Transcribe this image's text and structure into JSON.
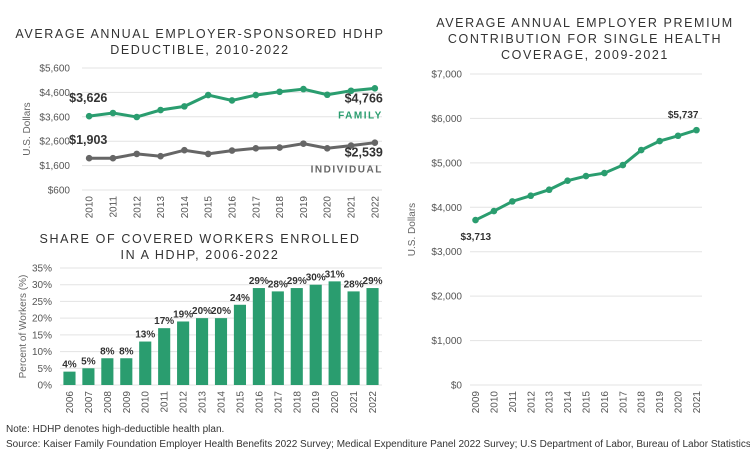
{
  "chart_data": [
    {
      "type": "line",
      "title_lines": [
        "AVERAGE ANNUAL EMPLOYER-SPONSORED HDHP",
        "DEDUCTIBLE, 2010-2022"
      ],
      "ylabel": "U.S. Dollars",
      "xlabel": "",
      "ylim": [
        600,
        5600
      ],
      "yticks": [
        600,
        1600,
        2600,
        3600,
        4600,
        5600
      ],
      "ytick_labels": [
        "$600",
        "$1,600",
        "$2,600",
        "$3,600",
        "$4,600",
        "$5,600"
      ],
      "x": [
        "2010",
        "2011",
        "2012",
        "2013",
        "2014",
        "2015",
        "2016",
        "2017",
        "2018",
        "2019",
        "2020",
        "2021",
        "2022"
      ],
      "grid": true,
      "series": [
        {
          "name": "FAMILY",
          "color": "#2a9d6f",
          "values": [
            3626,
            3755,
            3592,
            3878,
            4027,
            4490,
            4272,
            4490,
            4626,
            4735,
            4504,
            4667,
            4766
          ],
          "start_label": "$3,626",
          "end_label": "$4,766"
        },
        {
          "name": "INDIVIDUAL",
          "color": "#666666",
          "values": [
            1903,
            1903,
            2080,
            1985,
            2230,
            2080,
            2215,
            2310,
            2340,
            2500,
            2310,
            2420,
            2539
          ],
          "start_label": "$1,903",
          "end_label": "$2,539"
        }
      ]
    },
    {
      "type": "bar",
      "title_lines": [
        "SHARE OF COVERED WORKERS ENROLLED",
        "IN A HDHP, 2006-2022"
      ],
      "ylabel": "Percent of Workers (%)",
      "xlabel": "",
      "ylim": [
        0,
        35
      ],
      "yticks": [
        0,
        5,
        10,
        15,
        20,
        25,
        30,
        35
      ],
      "ytick_labels": [
        "0%",
        "5%",
        "10%",
        "15%",
        "20%",
        "25%",
        "30%",
        "35%"
      ],
      "categories": [
        "2006",
        "2007",
        "2008",
        "2009",
        "2010",
        "2011",
        "2012",
        "2013",
        "2014",
        "2015",
        "2016",
        "2017",
        "2018",
        "2019",
        "2020",
        "2021",
        "2022"
      ],
      "values": [
        4,
        5,
        8,
        8,
        13,
        17,
        19,
        20,
        20,
        24,
        29,
        28,
        29,
        30,
        31,
        28,
        29
      ],
      "data_labels": [
        "4%",
        "5%",
        "8%",
        "8%",
        "13%",
        "17%",
        "19%",
        "20%",
        "20%",
        "24%",
        "29%",
        "28%",
        "29%",
        "30%",
        "31%",
        "28%",
        "29%"
      ],
      "color": "#2a9d6f",
      "grid": true
    },
    {
      "type": "line",
      "title_lines": [
        "AVERAGE ANNUAL EMPLOYER PREMIUM",
        "CONTRIBUTION FOR SINGLE HEALTH",
        "COVERAGE, 2009-2021"
      ],
      "ylabel": "U.S. Dollars",
      "xlabel": "",
      "ylim": [
        0,
        7000
      ],
      "yticks": [
        0,
        1000,
        2000,
        3000,
        4000,
        5000,
        6000,
        7000
      ],
      "ytick_labels": [
        "$0",
        "$1,000",
        "$2,000",
        "$3,000",
        "$4,000",
        "$5,000",
        "$6,000",
        "$7,000"
      ],
      "x": [
        "2009",
        "2010",
        "2011",
        "2012",
        "2013",
        "2014",
        "2015",
        "2016",
        "2017",
        "2018",
        "2019",
        "2020",
        "2021"
      ],
      "grid": true,
      "series": [
        {
          "color": "#2a9d6f",
          "values": [
            3713,
            3915,
            4133,
            4260,
            4395,
            4598,
            4703,
            4770,
            4950,
            5288,
            5490,
            5610,
            5737
          ],
          "start_label": "$3,713",
          "end_label": "$5,737"
        }
      ]
    }
  ],
  "footer": {
    "note": "Note: HDHP denotes high-deductible health plan.",
    "source": "Source: Kaiser Family Foundation Employer Health Benefits 2022 Survey; Medical Expenditure Panel 2022 Survey;  U.S Department of Labor, Bureau of Labor Statistics."
  }
}
